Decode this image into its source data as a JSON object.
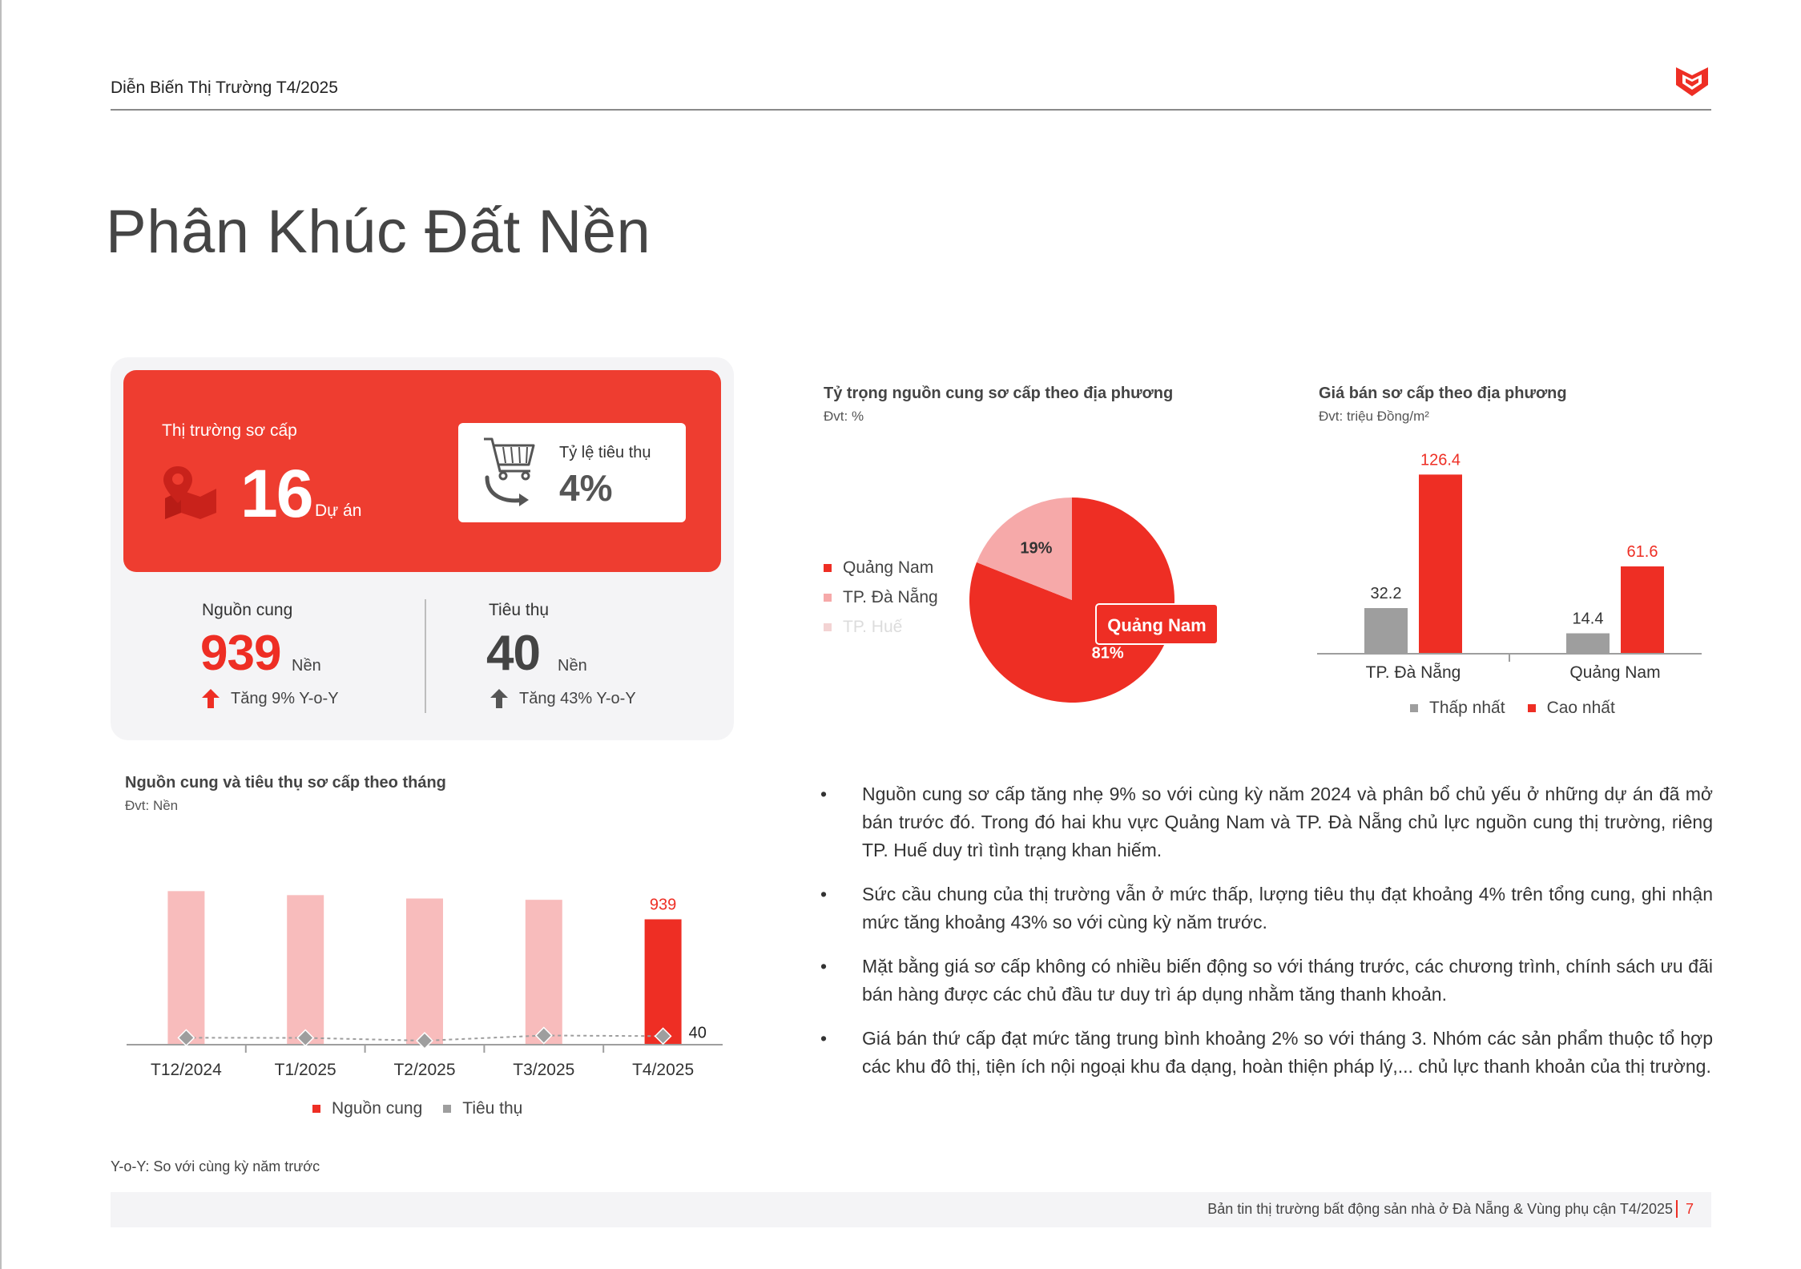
{
  "header": {
    "title": "Diễn Biến Thị Trường T4/2025"
  },
  "page_title": "Phân Khúc Đất Nền",
  "summary": {
    "primary_label": "Thị trường sơ cấp",
    "projects_value": "16",
    "projects_unit": "Dự án",
    "rate_label": "Tỷ lệ tiêu thụ",
    "rate_value": "4%",
    "supply": {
      "label": "Nguồn cung",
      "value": "939",
      "unit": "Nền",
      "change": "Tăng 9% Y-o-Y"
    },
    "consumption": {
      "label": "Tiêu thụ",
      "value": "40",
      "unit": "Nền",
      "change": "Tăng 43% Y-o-Y"
    }
  },
  "pie": {
    "title": "Tỷ trọng nguồn cung sơ cấp theo địa phương",
    "unit": "Đvt: %",
    "callout": "Quảng Nam"
  },
  "price": {
    "title": "Giá bán sơ cấp theo địa phương",
    "unit": "Đvt: triệu Đồng/m²"
  },
  "monthly": {
    "title": "Nguồn cung và tiêu thụ sơ cấp theo tháng",
    "unit": "Đvt: Nền"
  },
  "chart_data": [
    {
      "type": "pie",
      "title": "Tỷ trọng nguồn cung sơ cấp theo địa phương",
      "slices": [
        {
          "name": "Quảng Nam",
          "value": 81,
          "label": "81%",
          "color": "#ee2e24"
        },
        {
          "name": "TP. Đà Nẵng",
          "value": 19,
          "label": "19%",
          "color": "#f6a9a9"
        },
        {
          "name": "TP. Huế",
          "value": 0,
          "label": "",
          "color": "#f3d3d3"
        }
      ],
      "legend_position": "left"
    },
    {
      "type": "bar",
      "title": "Giá bán sơ cấp theo địa phương",
      "categories": [
        "TP. Đà Nẵng",
        "Quảng Nam"
      ],
      "series": [
        {
          "name": "Thấp nhất",
          "values": [
            32.2,
            14.4
          ],
          "color": "#9e9e9e"
        },
        {
          "name": "Cao nhất",
          "values": [
            126.4,
            61.6
          ],
          "color": "#ee2e24"
        }
      ],
      "ylim": [
        0,
        130
      ],
      "legend_position": "bottom"
    },
    {
      "type": "bar",
      "title": "Nguồn cung và tiêu thụ sơ cấp theo tháng",
      "categories": [
        "T12/2024",
        "T1/2025",
        "T2/2025",
        "T3/2025",
        "T4/2025"
      ],
      "series": [
        {
          "name": "Nguồn cung",
          "type": "bar",
          "values": [
            1150,
            1120,
            1095,
            1085,
            939
          ],
          "labels": [
            "",
            "",
            "",
            "",
            "939"
          ],
          "color": "#ee2e24",
          "past_color": "#f8bcbc"
        },
        {
          "name": "Tiêu thụ",
          "type": "line",
          "values": [
            28,
            27,
            6,
            45,
            40
          ],
          "labels": [
            "",
            "",
            "",
            "",
            "40"
          ],
          "color": "#9e9e9e"
        }
      ],
      "ylim": [
        0,
        1200
      ],
      "legend_position": "bottom"
    }
  ],
  "bullets": [
    "Nguồn cung sơ cấp tăng nhẹ 9% so với cùng kỳ năm 2024 và phân bổ chủ yếu ở những dự án đã mở bán trước đó. Trong đó hai khu vực Quảng Nam và TP. Đà Nẵng chủ lực nguồn cung thị trường, riêng TP. Huế duy trì tình trạng khan hiếm.",
    "Sức cầu chung của thị trường vẫn ở mức thấp, lượng tiêu thụ đạt khoảng 4% trên tổng cung, ghi nhận mức tăng khoảng 43% so với cùng kỳ năm trước.",
    "Mặt bằng giá sơ cấp không có nhiều biến động so với tháng trước, các chương trình, chính sách ưu đãi bán hàng được các chủ đầu tư duy trì áp dụng nhằm tăng thanh khoản.",
    "Giá bán thứ cấp đạt mức tăng trung bình khoảng 2% so với tháng 3. Nhóm các sản phẩm thuộc tổ hợp các khu đô thị, tiện ích nội ngoại khu đa dạng, hoàn thiện pháp lý,... chủ lực thanh khoản của thị trường."
  ],
  "footnote": "Y-o-Y: So với cùng kỳ năm trước",
  "footer": {
    "text": "Bản tin thị trường bất động sản nhà ở Đà Nẵng & Vùng phụ cận T4/2025",
    "page": "7"
  },
  "icons": [
    "brand-logo-icon",
    "map-pin-icon",
    "shopping-cart-icon",
    "arrow-up-icon"
  ]
}
